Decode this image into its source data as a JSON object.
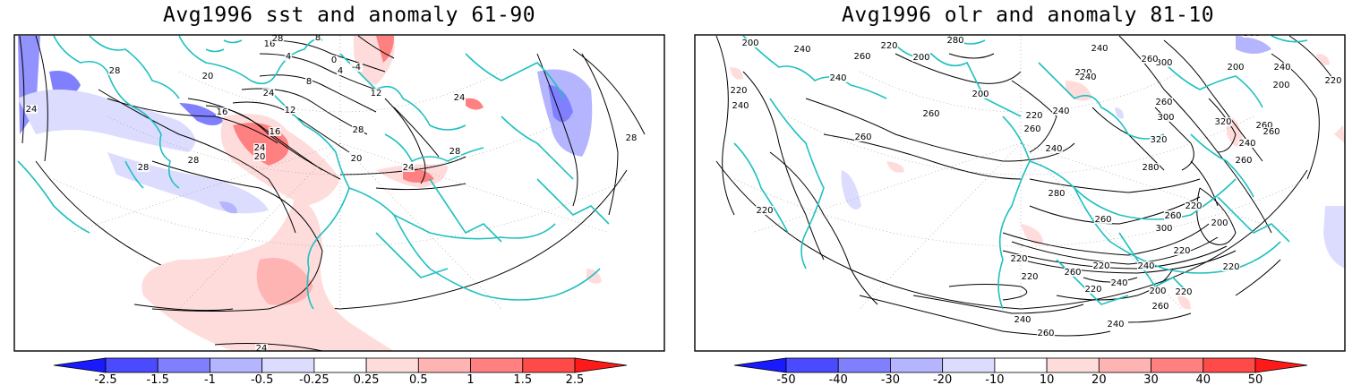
{
  "panels": [
    {
      "title": "Avg1996 sst and anomaly 61-90",
      "contour_labels": [
        "24",
        "28",
        "20",
        "16",
        "12",
        "8",
        "4",
        "0",
        "-4",
        "16",
        "20",
        "24",
        "28",
        "16",
        "24",
        "28",
        "12",
        "8",
        "4",
        "28",
        "24",
        "20",
        "24",
        "28",
        "28",
        "24",
        "28"
      ],
      "colorbar": {
        "ticks": [
          "-2.5",
          "-1.5",
          "-1",
          "-0.5",
          "-0.25",
          "0.25",
          "0.5",
          "1",
          "1.5",
          "2.5"
        ],
        "colors": [
          "#1a1aff",
          "#4a4aff",
          "#8080ff",
          "#b4b4ff",
          "#dcdcff",
          "#ffffff",
          "#ffdcdc",
          "#ffb4b4",
          "#ff8080",
          "#ff4a4a",
          "#ff1a1a"
        ]
      }
    },
    {
      "title": "Avg1996 olr and anomaly 81-10",
      "contour_labels": [
        "200",
        "240",
        "260",
        "220",
        "240",
        "200",
        "280",
        "240",
        "200",
        "220",
        "260",
        "220",
        "240",
        "260",
        "220",
        "200",
        "200",
        "240",
        "220",
        "300",
        "260",
        "300",
        "220",
        "240",
        "240",
        "260",
        "240",
        "220",
        "320",
        "320",
        "300",
        "260",
        "260",
        "260",
        "240",
        "260",
        "280",
        "280",
        "220",
        "240",
        "220",
        "300",
        "200",
        "260",
        "220",
        "280",
        "260",
        "220",
        "220",
        "240",
        "260",
        "240",
        "220",
        "200",
        "220",
        "240",
        "260",
        "260"
      ],
      "colorbar": {
        "ticks": [
          "-50",
          "-40",
          "-30",
          "-20",
          "-10",
          "10",
          "20",
          "30",
          "40",
          "50"
        ],
        "colors": [
          "#1a1aff",
          "#4a4aff",
          "#8080ff",
          "#b4b4ff",
          "#dcdcff",
          "#ffffff",
          "#ffdcdc",
          "#ffb4b4",
          "#ff8080",
          "#ff4a4a",
          "#ff1a1a"
        ]
      }
    }
  ]
}
